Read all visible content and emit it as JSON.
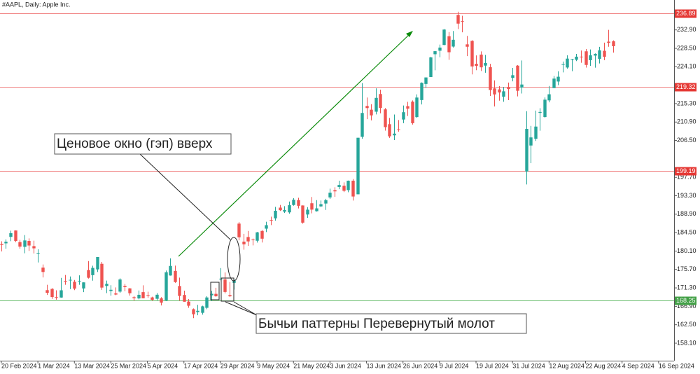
{
  "chart_data": {
    "type": "candlestick",
    "title": "#AAPL, Daily:  Apple Inc.",
    "up_color": "#26a69a",
    "down_color": "#ef5350",
    "open": [
      181.79,
      181.94,
      183.48,
      185.01,
      182.24,
      181.1,
      182.51,
      181.27,
      179.55,
      176.15,
      170.76,
      171.06,
      169.15,
      169.0,
      172.94,
      173.15,
      172.77,
      172.91,
      171.17,
      175.57,
      174.34,
      175.72,
      177.05,
      171.76,
      170.57,
      170.0,
      170.41,
      171.75,
      171.19,
      169.08,
      168.79,
      170.29,
      169.59,
      169.03,
      168.7,
      168.8,
      168.34,
      174.26,
      175.36,
      171.75,
      169.61,
      168.03,
      166.21,
      165.52,
      165.35,
      166.54,
      169.53,
      169.88,
      173.37,
      173.33,
      169.58,
      172.51,
      186.65,
      182.35,
      183.45,
      182.85,
      182.56,
      184.9,
      185.44,
      187.51,
      187.91,
      190.47,
      189.51,
      189.33,
      191.09,
      192.27,
      190.98,
      188.82,
      191.51,
      189.61,
      190.76,
      191.44,
      192.9,
      194.64,
      195.4,
      195.69,
      194.65,
      196.9,
      193.65,
      207.37,
      214.74,
      213.85,
      213.37,
      217.59,
      213.93,
      210.39,
      207.72,
      209.15,
      211.5,
      214.69,
      215.77,
      212.09,
      216.15,
      220.0,
      221.65,
      227.09,
      227.93,
      229.3,
      231.39,
      228.92,
      236.48,
      235.0,
      229.45,
      230.28,
      224.82,
      227.01,
      224.37,
      224.0,
      218.93,
      218.7,
      216.96,
      219.19,
      221.44,
      224.37,
      219.15,
      199.09,
      205.3,
      206.9,
      213.11,
      212.1,
      216.07,
      219.01,
      220.57,
      224.6,
      223.92,
      225.72,
      225.77,
      226.52,
      227.79,
      225.66,
      226.76,
      226.0,
      227.92,
      230.1,
      230.19
    ],
    "high": [
      182.43,
      182.89,
      184.96,
      185.04,
      182.76,
      183.92,
      183.12,
      182.57,
      180.53,
      176.9,
      172.04,
      171.24,
      170.73,
      173.7,
      174.38,
      174.03,
      173.19,
      174.31,
      172.62,
      177.71,
      176.61,
      178.67,
      177.49,
      173.05,
      171.94,
      171.42,
      173.6,
      172.23,
      171.25,
      169.34,
      170.68,
      171.92,
      170.39,
      169.2,
      170.08,
      169.09,
      175.46,
      178.36,
      176.63,
      173.76,
      170.65,
      168.64,
      166.4,
      167.26,
      167.05,
      169.3,
      170.61,
      171.34,
      176.03,
      174.99,
      172.71,
      173.42,
      187.0,
      184.2,
      184.9,
      183.07,
      184.66,
      185.09,
      187.1,
      188.3,
      190.65,
      191.1,
      190.81,
      191.92,
      192.73,
      192.82,
      191.0,
      190.58,
      193.0,
      192.25,
      192.18,
      192.57,
      194.99,
      195.32,
      196.9,
      196.5,
      196.94,
      197.3,
      207.16,
      220.2,
      216.75,
      215.17,
      218.95,
      218.63,
      214.24,
      211.89,
      212.7,
      211.38,
      214.86,
      215.74,
      216.07,
      217.51,
      220.38,
      221.55,
      226.45,
      227.85,
      229.4,
      233.08,
      232.39,
      232.64,
      237.23,
      236.27,
      231.46,
      230.44,
      226.8,
      227.78,
      226.94,
      224.8,
      220.85,
      219.49,
      219.3,
      220.33,
      223.82,
      224.48,
      225.6,
      213.5,
      209.99,
      213.64,
      214.2,
      216.78,
      219.51,
      221.89,
      223.03,
      225.35,
      226.83,
      225.99,
      227.17,
      227.98,
      228.34,
      228.22,
      227.28,
      228.85,
      229.86,
      232.92,
      230.4
    ],
    "low": [
      180.0,
      180.66,
      182.46,
      182.23,
      180.65,
      179.56,
      180.13,
      179.53,
      177.38,
      173.79,
      169.62,
      168.68,
      168.49,
      168.94,
      172.05,
      171.01,
      170.76,
      172.05,
      170.29,
      173.52,
      173.03,
      175.09,
      170.84,
      170.06,
      169.45,
      169.58,
      170.11,
      170.51,
      169.48,
      168.23,
      168.58,
      168.82,
      168.95,
      168.24,
      168.35,
      167.11,
      168.16,
      174.21,
      172.5,
      168.27,
      168.0,
      166.55,
      164.08,
      164.77,
      164.92,
      166.21,
      168.15,
      169.18,
      173.1,
      170.0,
      169.11,
      170.89,
      182.66,
      180.42,
      181.32,
      181.45,
      182.11,
      182.13,
      184.62,
      186.29,
      187.37,
      189.66,
      189.18,
      189.01,
      190.92,
      190.27,
      186.63,
      188.04,
      189.1,
      189.51,
      190.63,
      189.91,
      192.52,
      193.03,
      194.87,
      194.17,
      194.14,
      192.15,
      193.63,
      206.9,
      211.6,
      211.3,
      212.72,
      213.0,
      208.85,
      207.11,
      206.59,
      208.61,
      210.64,
      212.35,
      210.3,
      211.92,
      215.1,
      219.03,
      221.65,
      223.25,
      226.37,
      229.25,
      225.77,
      228.68,
      233.09,
      232.33,
      226.64,
      222.27,
      223.28,
      223.09,
      222.68,
      217.13,
      214.62,
      216.01,
      215.75,
      216.12,
      220.63,
      217.02,
      217.71,
      196.0,
      201.07,
      206.39,
      208.83,
      211.97,
      215.6,
      219.01,
      219.7,
      222.76,
      223.65,
      223.04,
      225.45,
      225.05,
      223.9,
      224.33,
      223.89,
      224.89,
      225.68,
      228.88,
      227.48
    ],
    "close": [
      181.56,
      182.32,
      184.37,
      182.52,
      181.16,
      182.63,
      181.42,
      180.75,
      179.66,
      175.1,
      170.12,
      169.12,
      169.0,
      170.73,
      172.75,
      173.23,
      171.13,
      173.0,
      172.62,
      173.72,
      176.08,
      178.67,
      171.37,
      172.28,
      170.85,
      169.71,
      173.31,
      171.48,
      170.03,
      168.84,
      169.65,
      168.82,
      169.58,
      168.45,
      169.67,
      167.78,
      175.04,
      176.55,
      172.69,
      169.38,
      168.0,
      167.04,
      165.0,
      165.84,
      166.9,
      169.02,
      169.89,
      169.3,
      173.5,
      170.33,
      169.3,
      173.03,
      183.38,
      181.71,
      182.4,
      182.74,
      184.57,
      183.05,
      186.28,
      187.43,
      189.72,
      189.84,
      189.87,
      191.04,
      192.35,
      190.9,
      186.88,
      189.98,
      189.99,
      190.29,
      191.29,
      192.25,
      194.03,
      194.35,
      195.87,
      194.48,
      196.89,
      193.12,
      207.15,
      213.07,
      214.24,
      212.49,
      216.67,
      214.29,
      209.68,
      207.49,
      208.14,
      209.07,
      213.25,
      214.1,
      210.62,
      216.75,
      220.27,
      221.55,
      226.34,
      227.82,
      228.68,
      232.98,
      227.57,
      230.54,
      234.4,
      234.82,
      228.88,
      224.18,
      224.31,
      223.96,
      225.01,
      218.54,
      217.49,
      217.96,
      218.24,
      218.8,
      222.08,
      218.36,
      219.86,
      209.27,
      207.23,
      209.82,
      213.31,
      216.24,
      217.53,
      221.27,
      221.72,
      224.72,
      226.05,
      225.89,
      226.51,
      226.4,
      224.53,
      226.84,
      227.18,
      228.03,
      226.49,
      229.79,
      229.0
    ],
    "xlim": [
      -0.3,
      147.4
    ],
    "xticks": [
      {
        "value": 0,
        "label": "20 Feb 2024"
      },
      {
        "value": 8,
        "label": "1 Mar 2024"
      },
      {
        "value": 16,
        "label": "13 Mar 2024"
      },
      {
        "value": 24,
        "label": "25 Mar 2024"
      },
      {
        "value": 32,
        "label": "5 Apr 2024"
      },
      {
        "value": 40,
        "label": "17 Apr 2024"
      },
      {
        "value": 48,
        "label": "29 Apr 2024"
      },
      {
        "value": 56,
        "label": "9 May 2024"
      },
      {
        "value": 64,
        "label": "21 May 2024"
      },
      {
        "value": 72,
        "label": "3 Jun 2024"
      },
      {
        "value": 80,
        "label": "13 Jun 2024"
      },
      {
        "value": 88,
        "label": "26 Jun 2024"
      },
      {
        "value": 96,
        "label": "9 Jul 2024"
      },
      {
        "value": 104,
        "label": "19 Jul 2024"
      },
      {
        "value": 112,
        "label": "31 Jul 2024"
      },
      {
        "value": 120,
        "label": "12 Aug 2024"
      },
      {
        "value": 128,
        "label": "22 Aug 2024"
      },
      {
        "value": 136,
        "label": "4 Sep 2024"
      },
      {
        "value": 144,
        "label": "16 Sep 2024"
      }
    ],
    "ylim": [
      153.92,
      240.04
    ],
    "yticks": [
      {
        "value": 158.1,
        "label": "158.10"
      },
      {
        "value": 162.5,
        "label": "162.50"
      },
      {
        "value": 166.9,
        "label": "166.90"
      },
      {
        "value": 171.3,
        "label": "171.30"
      },
      {
        "value": 175.7,
        "label": "175.70"
      },
      {
        "value": 180.1,
        "label": "180.10"
      },
      {
        "value": 184.5,
        "label": "184.50"
      },
      {
        "value": 188.9,
        "label": "188.90"
      },
      {
        "value": 193.3,
        "label": "193.30"
      },
      {
        "value": 197.7,
        "label": "197.70"
      },
      {
        "value": 206.5,
        "label": "206.50"
      },
      {
        "value": 210.9,
        "label": "210.90"
      },
      {
        "value": 215.3,
        "label": "215.30"
      },
      {
        "value": 224.1,
        "label": "224.10"
      },
      {
        "value": 228.5,
        "label": "228.50"
      },
      {
        "value": 232.9,
        "label": "232.90"
      }
    ],
    "levels": [
      {
        "value": 236.89,
        "color": "#f08080",
        "label_color": "#e53935"
      },
      {
        "value": 219.32,
        "color": "#f08080",
        "label_color": "#e53935"
      },
      {
        "value": 199.19,
        "color": "#f08080",
        "label_color": "#e53935"
      },
      {
        "value": 168.25,
        "color": "#66bb6a",
        "label_color": "#43a047"
      }
    ],
    "grid": false,
    "annotations": [
      "Ценовое окно (гэп) вверх",
      "Бычьи паттерны Перевернутый молот"
    ]
  }
}
